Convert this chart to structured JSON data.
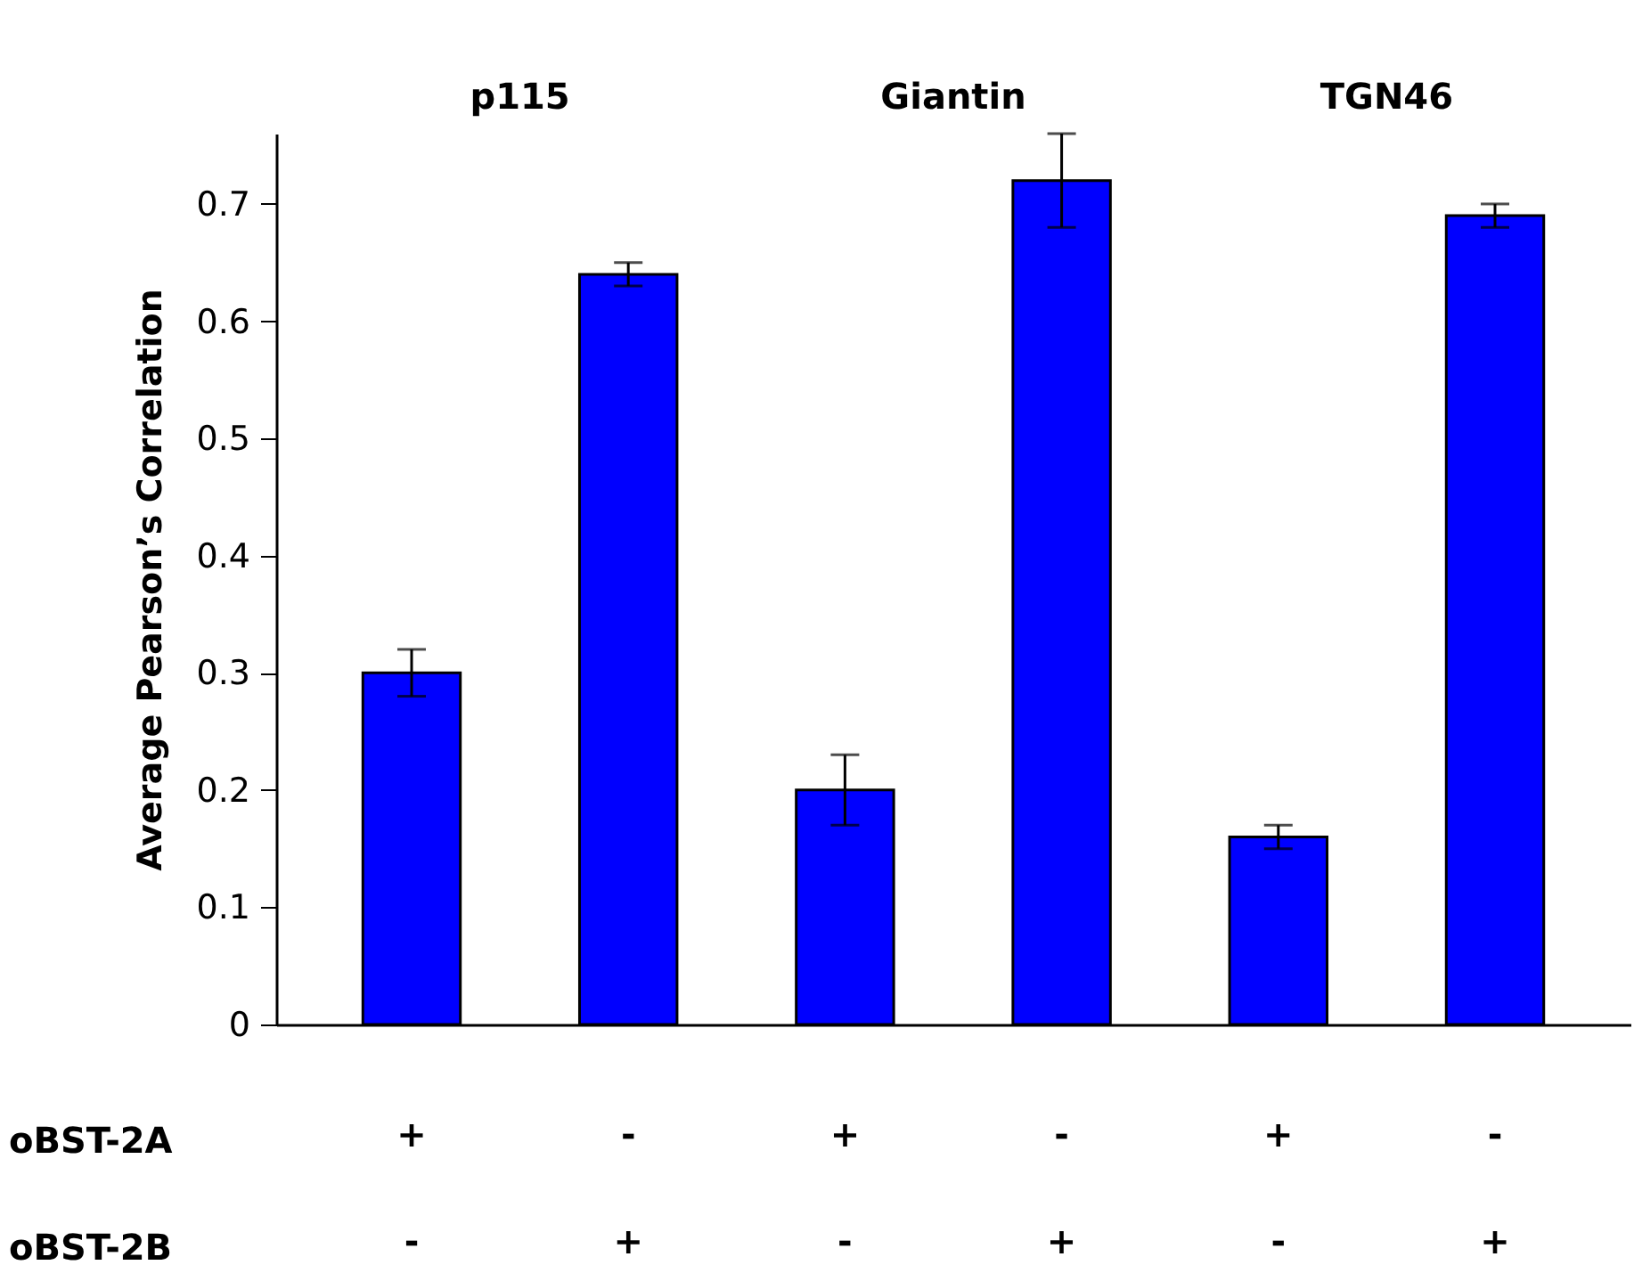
{
  "chart_data": {
    "type": "bar",
    "ylabel": "Average Pearson’s Correlation",
    "categories": [
      "+\n-",
      "-\n+",
      "+\n-",
      "-\n+",
      "+\n-",
      "-\n+"
    ],
    "values": [
      0.3,
      0.64,
      0.2,
      0.72,
      0.16,
      0.69
    ],
    "errors": [
      0.02,
      0.01,
      0.03,
      0.04,
      0.01,
      0.01
    ],
    "color": "#0000ff",
    "ylim": [
      0,
      0.76
    ],
    "yticks": [
      0,
      0.1,
      0.2,
      0.3,
      0.4,
      0.5,
      0.6,
      0.7
    ],
    "annotations": [
      "p115",
      "Giantin",
      "TGN46",
      "oBST-2A",
      "oBST-2B"
    ]
  }
}
